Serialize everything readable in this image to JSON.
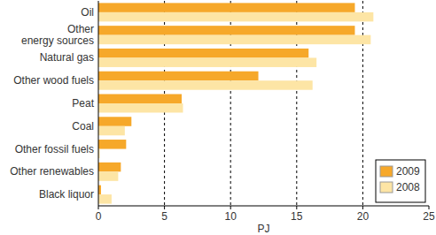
{
  "chart_data": {
    "type": "bar",
    "orientation": "horizontal",
    "x_label": "PJ",
    "categories": [
      "Oil",
      "Other\nenergy sources",
      "Natural gas",
      "Other wood fuels",
      "Peat",
      "Coal",
      "Other fossil fuels",
      "Other renewables",
      "Black liquor"
    ],
    "series": [
      {
        "name": "2009",
        "color": "#f6a82a",
        "values": [
          19.4,
          19.4,
          15.9,
          12.1,
          6.3,
          2.5,
          2.1,
          1.7,
          0.2
        ]
      },
      {
        "name": "2008",
        "color": "#fde5a5",
        "values": [
          20.8,
          20.6,
          16.5,
          16.2,
          6.4,
          2.0,
          0.1,
          1.5,
          1.0
        ]
      }
    ],
    "xlim": [
      0,
      25
    ],
    "xticks": [
      0,
      5,
      10,
      15,
      20,
      25
    ],
    "grid": true,
    "legend": "lower right"
  }
}
